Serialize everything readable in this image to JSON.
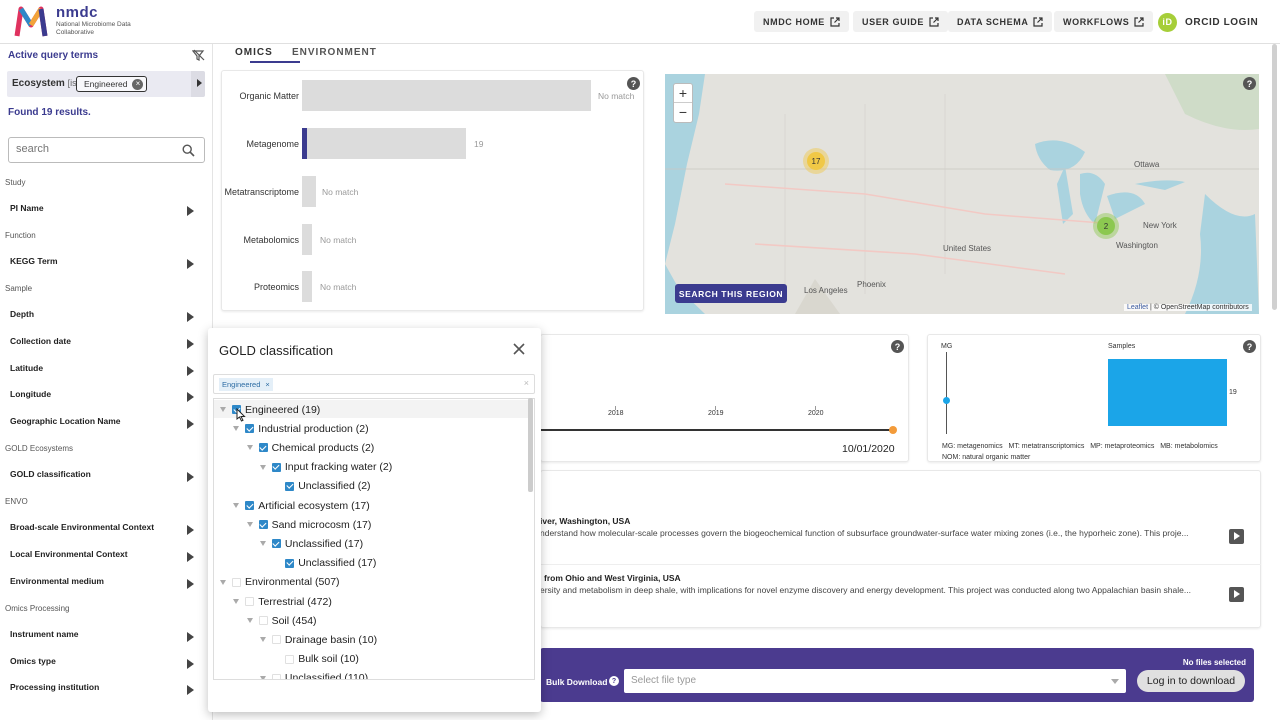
{
  "header": {
    "logo_title": "nmdc",
    "logo_subtitle": "National Microbiome Data Collaborative",
    "nav": [
      {
        "label": "NMDC HOME"
      },
      {
        "label": "USER GUIDE"
      },
      {
        "label": "DATA SCHEMA"
      },
      {
        "label": "WORKFLOWS"
      }
    ],
    "orcid_icon": "iD",
    "orcid_label": "ORCID LOGIN"
  },
  "sidebar": {
    "active_query_title": "Active query terms",
    "chip_field": "Ecosystem",
    "chip_op": "[is]",
    "chip_value": "Engineered",
    "chip_remove": "×",
    "found": "Found 19 results.",
    "search_placeholder": "search",
    "groups": [
      {
        "title": "Study",
        "items": [
          "PI Name"
        ]
      },
      {
        "title": "Function",
        "items": [
          "KEGG Term"
        ]
      },
      {
        "title": "Sample",
        "items": [
          "Depth",
          "Collection date",
          "Latitude",
          "Longitude",
          "Geographic Location Name"
        ]
      },
      {
        "title": "GOLD Ecosystems",
        "items": [
          "GOLD classification"
        ]
      },
      {
        "title": "ENVO",
        "items": [
          "Broad-scale Environmental Context",
          "Local Environmental Context",
          "Environmental medium"
        ]
      },
      {
        "title": "Omics Processing",
        "items": [
          "Instrument name",
          "Omics type",
          "Processing institution"
        ]
      }
    ]
  },
  "tabs": [
    {
      "label": "OMICS"
    },
    {
      "label": "ENVIRONMENT"
    }
  ],
  "help_glyph": "?",
  "omics_chart": {
    "bars": [
      {
        "label": "Organic Matter",
        "value_text": "No match"
      },
      {
        "label": "Metagenome",
        "value_text": "19"
      },
      {
        "label": "Metatranscriptome",
        "value_text": "No match"
      },
      {
        "label": "Metabolomics",
        "value_text": "No match"
      },
      {
        "label": "Proteomics",
        "value_text": "No match"
      }
    ]
  },
  "map": {
    "zoom_in": "+",
    "zoom_out": "−",
    "clusters": [
      {
        "count": "17"
      },
      {
        "count": "2"
      }
    ],
    "labels": [
      "Ottawa",
      "New York",
      "Washington",
      "United States",
      "Phoenix",
      "Los Angeles"
    ],
    "search_button": "SEARCH THIS REGION",
    "attribution_leaflet": "Leaflet",
    "attribution_osm": " | © OpenStreetMap contributors"
  },
  "timeline": {
    "years": [
      "2018",
      "2019",
      "2020"
    ],
    "end_date": "10/01/2020"
  },
  "mg_chart": {
    "axis_label": "MG",
    "samples_label": "Samples",
    "samples_value": "19",
    "legend_line1": "MG: metagenomics   MT: metatranscriptomics   MP: metaproteomics   MB: metabolomics",
    "legend_line2": "NOM: natural organic matter"
  },
  "studies": [
    {
      "title": "iver, Washington, USA",
      "desc": "nderstand how molecular-scale processes govern the biogeochemical function of subsurface groundwater-surface water mixing zones (i.e., the hyporheic zone). This proje..."
    },
    {
      "title": "from Ohio and West Virginia, USA",
      "desc": "ersity and metabolism in deep shale, with implications for novel enzyme discovery and energy development. This project was conducted along two Appalachian basin shale..."
    }
  ],
  "bulk": {
    "label": "Bulk Download",
    "help": "?",
    "select_placeholder": "Select file type",
    "no_files": "No files selected",
    "login": "Log in to download"
  },
  "gold_panel": {
    "title": "GOLD classification",
    "filter_chip": "Engineered",
    "filter_chip_remove": "×",
    "filter_clear": "×",
    "tree": [
      {
        "label": "Engineered (19)",
        "depth": 0,
        "checked": true,
        "caret": true
      },
      {
        "label": "Industrial production (2)",
        "depth": 1,
        "checked": true,
        "caret": true
      },
      {
        "label": "Chemical products (2)",
        "depth": 2,
        "checked": true,
        "caret": true
      },
      {
        "label": "Input fracking water (2)",
        "depth": 3,
        "checked": true,
        "caret": true
      },
      {
        "label": "Unclassified (2)",
        "depth": 4,
        "checked": true,
        "caret": false
      },
      {
        "label": "Artificial ecosystem (17)",
        "depth": 1,
        "checked": true,
        "caret": true
      },
      {
        "label": "Sand microcosm (17)",
        "depth": 2,
        "checked": true,
        "caret": true
      },
      {
        "label": "Unclassified (17)",
        "depth": 3,
        "checked": true,
        "caret": true
      },
      {
        "label": "Unclassified (17)",
        "depth": 4,
        "checked": true,
        "caret": false
      },
      {
        "label": "Environmental (507)",
        "depth": 0,
        "checked": false,
        "caret": true
      },
      {
        "label": "Terrestrial (472)",
        "depth": 1,
        "checked": false,
        "caret": true
      },
      {
        "label": "Soil (454)",
        "depth": 2,
        "checked": false,
        "caret": true
      },
      {
        "label": "Drainage basin (10)",
        "depth": 3,
        "checked": false,
        "caret": true
      },
      {
        "label": "Bulk soil (10)",
        "depth": 4,
        "checked": false,
        "caret": false
      },
      {
        "label": "Unclassified (110)",
        "depth": 3,
        "checked": false,
        "caret": true
      }
    ]
  },
  "colors": {
    "brand": "#3b3b8f",
    "bulk_bar": "#4b3b8f",
    "samples_bar": "#1ba5e8",
    "checkbox": "#2e88c8",
    "orcid": "#a6ce39"
  }
}
